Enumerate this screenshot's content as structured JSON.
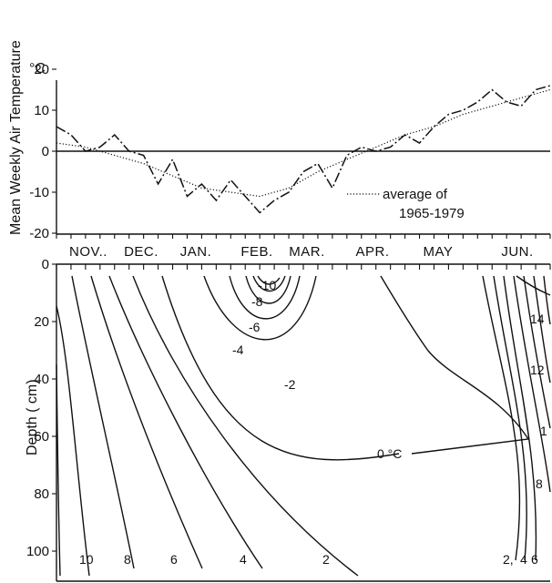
{
  "chart_data": [
    {
      "type": "line",
      "ylabel": "Mean Weekly Air Temperature",
      "yunit": "°C",
      "ylim": [
        -25,
        25
      ],
      "yticks": [
        -20,
        -10,
        0,
        10,
        20
      ],
      "x_months": [
        "NOV..",
        "DEC.",
        "JAN.",
        "FEB.",
        "MAR.",
        "APR.",
        "MAY",
        "JUN."
      ],
      "x_range_weeks": [
        0,
        34
      ],
      "series": [
        {
          "style": "dash-dot",
          "x": [
            0,
            1,
            2,
            3,
            4,
            5,
            6,
            7,
            8,
            9,
            10,
            11,
            12,
            13,
            14,
            15,
            16,
            17,
            18,
            19,
            20,
            21,
            22,
            23,
            24,
            25,
            26,
            27,
            28,
            29,
            30,
            31,
            32,
            33,
            34
          ],
          "values": [
            6,
            4,
            0,
            1,
            4,
            0,
            -1,
            -8,
            -2,
            -11,
            -8,
            -12,
            -7,
            -11,
            -15,
            -12,
            -10,
            -5,
            -3,
            -9,
            -1,
            1,
            0,
            1,
            4,
            2,
            6,
            9,
            10,
            12,
            15,
            12,
            11,
            15,
            16
          ]
        },
        {
          "name": "average of 1965-1979",
          "style": "dotted",
          "x": [
            0,
            2,
            4,
            6,
            8,
            10,
            12,
            14,
            16,
            18,
            20,
            22,
            24,
            26,
            28,
            30,
            32,
            34
          ],
          "values": [
            2,
            1,
            -1,
            -3,
            -6,
            -9,
            -10,
            -11,
            -9,
            -5,
            -2,
            1,
            4,
            6,
            9,
            11,
            13,
            15
          ]
        }
      ],
      "legend": {
        "label_line1": "average of",
        "label_line2": "1965-1979",
        "position": "bottom-right"
      }
    },
    {
      "type": "contour",
      "ylabel": "Depth ( cm)",
      "ylim": [
        0,
        110
      ],
      "y_inverted": true,
      "yticks": [
        0,
        20,
        40,
        60,
        80,
        100
      ],
      "contour_labels": {
        "m10": "-10",
        "m8": "-8",
        "m6": "-6",
        "m4": "-4",
        "m2": "-2",
        "zero": "0 °C",
        "c14": "14",
        "c12": "12",
        "c10_right": "1",
        "c8_right": "8",
        "c10": "10",
        "c8": "8",
        "c6": "6",
        "c4": "4",
        "c2": "2",
        "c2_right": "2,",
        "c4_right": "4",
        "c6_right": "6"
      }
    }
  ]
}
